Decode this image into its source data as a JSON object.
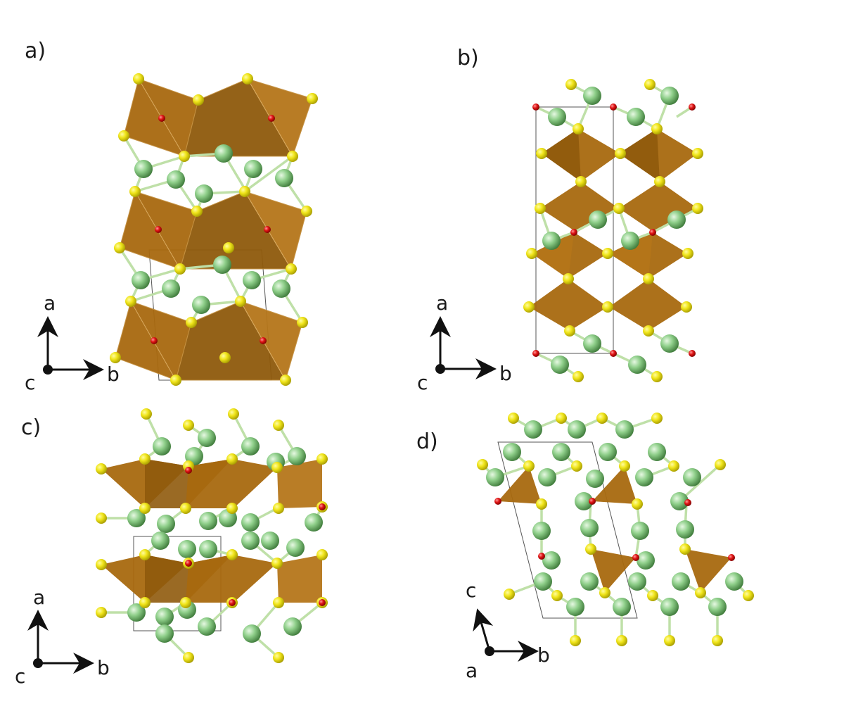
{
  "panels": [
    {
      "id": "a",
      "label": "a)",
      "axes": {
        "up": "a",
        "right": "b",
        "out": "c"
      }
    },
    {
      "id": "b",
      "label": "b)",
      "axes": {
        "up": "a",
        "right": "b",
        "out": "c"
      }
    },
    {
      "id": "c",
      "label": "c)",
      "axes": {
        "up": "a",
        "right": "b",
        "out": "c"
      }
    },
    {
      "id": "d",
      "label": "d)",
      "axes": {
        "up": "c",
        "right": "b",
        "out": "a"
      }
    }
  ],
  "colors": {
    "polyhedron": "#a8690f",
    "polyhedron_dark": "#8c5508",
    "sulfur": "#e8e01a",
    "cation": "#8fcf8a",
    "oxygen": "#e01414",
    "bond_s": "#d9d430",
    "bond_cation": "#a8dca0",
    "cell": "#555555"
  }
}
